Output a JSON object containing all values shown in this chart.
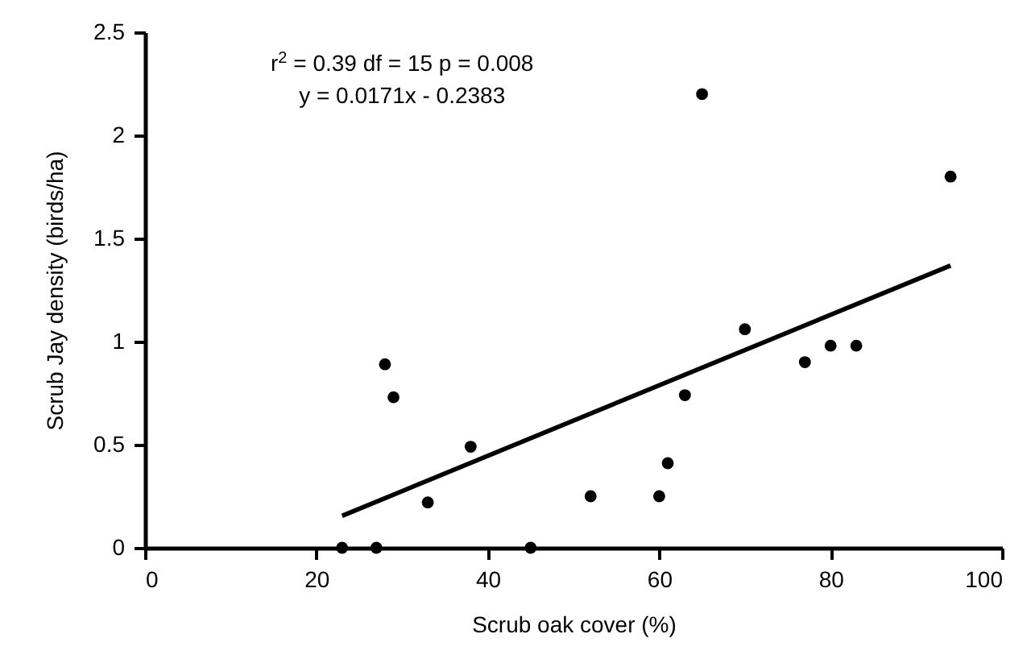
{
  "chart_data": {
    "type": "scatter",
    "xlabel": "Scrub oak cover (%)",
    "ylabel": "Scrub Jay density (birds/ha)",
    "xlim": [
      0,
      100
    ],
    "xticks": [
      0,
      20,
      40,
      60,
      80,
      100
    ],
    "ylim": [
      0,
      2.5
    ],
    "yticks": [
      0,
      0.5,
      1,
      1.5,
      2,
      2.5
    ],
    "grid": false,
    "annotations": [
      "r$^{2}$ = 0.39 df = 15 p = 0.008",
      "y = 0.0171x - 0.2383"
    ],
    "series": [
      {
        "marker": "circle",
        "color": "#000000",
        "x": [
          23,
          27,
          28,
          29,
          33,
          38,
          45,
          52,
          60,
          61,
          63,
          65,
          70,
          77,
          80,
          83,
          94
        ],
        "values": [
          0,
          0,
          0.89,
          0.73,
          0.22,
          0.49,
          0,
          0.25,
          0.25,
          0.41,
          0.74,
          2.2,
          1.06,
          0.9,
          0.98,
          0.98,
          1.8
        ]
      },
      {
        "type": "line",
        "color": "#000000",
        "x": [
          23,
          94
        ],
        "values": [
          0.155,
          1.369
        ]
      }
    ]
  }
}
